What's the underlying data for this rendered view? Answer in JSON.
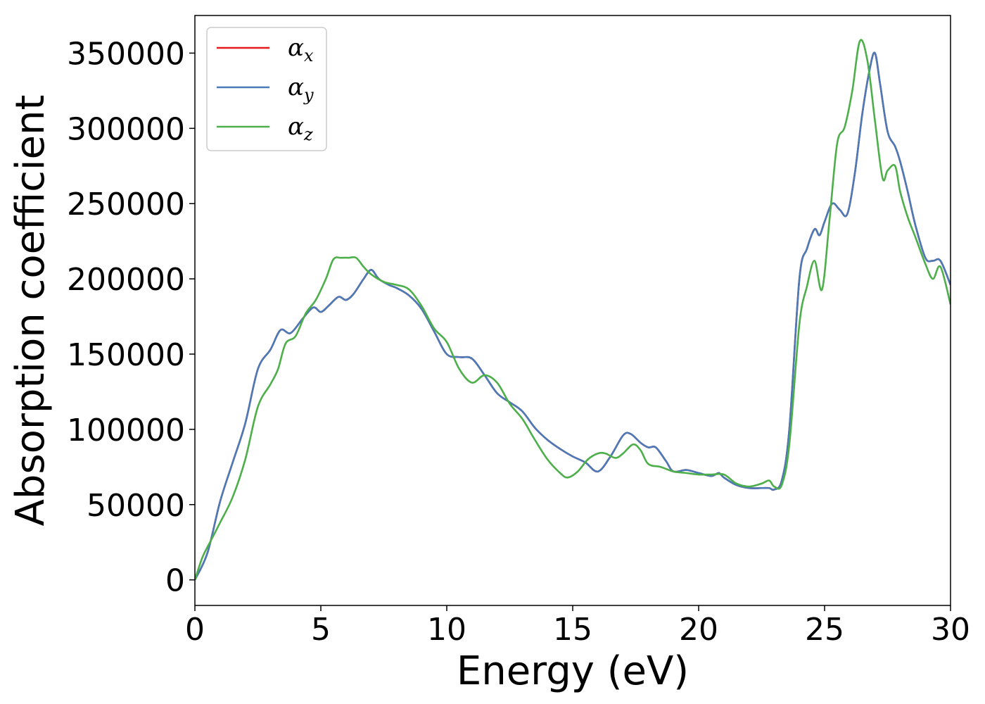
{
  "chart_data": {
    "type": "line",
    "xlabel": "Energy (eV)",
    "ylabel": "Absorption coefficient",
    "xlim": [
      0,
      30
    ],
    "ylim": [
      -17000,
      375000
    ],
    "xticks": [
      0,
      5,
      10,
      15,
      20,
      25,
      30
    ],
    "yticks": [
      0,
      50000,
      100000,
      150000,
      200000,
      250000,
      300000,
      350000
    ],
    "legend_position": "upper-left",
    "grid": false,
    "series": [
      {
        "name": "α_x",
        "symbol": "α",
        "subscript": "x",
        "color": "#e41a1c",
        "x": [
          0,
          0.5,
          1,
          1.5,
          2,
          2.5,
          3,
          3.4,
          3.8,
          4.3,
          4.7,
          5,
          5.3,
          5.7,
          6,
          6.3,
          6.7,
          7,
          7.3,
          7.7,
          8,
          8.5,
          9,
          9.5,
          10,
          10.5,
          11,
          11.5,
          12,
          12.5,
          13,
          13.5,
          14,
          14.5,
          15,
          15.5,
          16,
          16.5,
          17,
          17.3,
          17.7,
          18,
          18.3,
          18.7,
          19,
          19.5,
          20,
          20.5,
          20.8,
          21,
          21.5,
          22,
          22.5,
          22.8,
          23,
          23.3,
          23.6,
          24,
          24.3,
          24.6,
          24.8,
          25,
          25.3,
          25.6,
          25.9,
          26.2,
          26.5,
          26.8,
          27,
          27.2,
          27.5,
          27.8,
          28,
          28.3,
          28.6,
          29,
          29.3,
          29.6,
          30
        ],
        "values": [
          0,
          18000,
          52000,
          78000,
          104000,
          140000,
          153000,
          166000,
          164000,
          174000,
          181000,
          178000,
          182000,
          188000,
          186000,
          190000,
          200000,
          206000,
          200000,
          196000,
          194000,
          189000,
          180000,
          165000,
          150000,
          148000,
          147000,
          136000,
          124000,
          118000,
          112000,
          101000,
          93000,
          87000,
          82000,
          78000,
          72000,
          82000,
          96000,
          97000,
          91000,
          88000,
          88000,
          79000,
          72000,
          73000,
          71000,
          69000,
          71000,
          68000,
          63000,
          61000,
          61000,
          61000,
          60000,
          66000,
          100000,
          200000,
          220000,
          233000,
          229000,
          238000,
          250000,
          246000,
          243000,
          270000,
          310000,
          340000,
          350000,
          330000,
          298000,
          288000,
          278000,
          258000,
          236000,
          214000,
          212000,
          212000,
          196000
        ]
      },
      {
        "name": "α_y",
        "symbol": "α",
        "subscript": "y",
        "color": "#4a7ab8",
        "x": [
          0,
          0.5,
          1,
          1.5,
          2,
          2.5,
          3,
          3.4,
          3.8,
          4.3,
          4.7,
          5,
          5.3,
          5.7,
          6,
          6.3,
          6.7,
          7,
          7.3,
          7.7,
          8,
          8.5,
          9,
          9.5,
          10,
          10.5,
          11,
          11.5,
          12,
          12.5,
          13,
          13.5,
          14,
          14.5,
          15,
          15.5,
          16,
          16.5,
          17,
          17.3,
          17.7,
          18,
          18.3,
          18.7,
          19,
          19.5,
          20,
          20.5,
          20.8,
          21,
          21.5,
          22,
          22.5,
          22.8,
          23,
          23.3,
          23.6,
          24,
          24.3,
          24.6,
          24.8,
          25,
          25.3,
          25.6,
          25.9,
          26.2,
          26.5,
          26.8,
          27,
          27.2,
          27.5,
          27.8,
          28,
          28.3,
          28.6,
          29,
          29.3,
          29.6,
          30
        ],
        "values": [
          0,
          18000,
          52000,
          78000,
          104000,
          140000,
          153000,
          166000,
          164000,
          174000,
          181000,
          178000,
          182000,
          188000,
          186000,
          190000,
          200000,
          206000,
          200000,
          196000,
          194000,
          189000,
          180000,
          165000,
          150000,
          148000,
          147000,
          136000,
          124000,
          118000,
          112000,
          101000,
          93000,
          87000,
          82000,
          78000,
          72000,
          82000,
          96000,
          97000,
          91000,
          88000,
          88000,
          79000,
          72000,
          73000,
          71000,
          69000,
          71000,
          68000,
          63000,
          61000,
          61000,
          61000,
          60000,
          66000,
          100000,
          200000,
          220000,
          233000,
          229000,
          238000,
          250000,
          246000,
          243000,
          270000,
          310000,
          340000,
          350000,
          330000,
          298000,
          288000,
          278000,
          258000,
          236000,
          214000,
          212000,
          212000,
          196000
        ]
      },
      {
        "name": "α_z",
        "symbol": "α",
        "subscript": "z",
        "color": "#4daf4a",
        "x": [
          0,
          0.3,
          0.6,
          1,
          1.5,
          2,
          2.5,
          3,
          3.3,
          3.6,
          4,
          4.4,
          4.8,
          5.2,
          5.5,
          5.8,
          6.1,
          6.4,
          6.7,
          7,
          7.5,
          8,
          8.5,
          9,
          9.5,
          10,
          10.5,
          11,
          11.5,
          12,
          12.5,
          13,
          13.5,
          14,
          14.5,
          14.8,
          15.2,
          15.6,
          16,
          16.3,
          16.7,
          17,
          17.4,
          17.7,
          18,
          18.5,
          19,
          19.5,
          20,
          20.5,
          21,
          21.5,
          22,
          22.5,
          22.8,
          23,
          23.3,
          23.6,
          24,
          24.3,
          24.6,
          24.9,
          25.2,
          25.5,
          25.8,
          26.1,
          26.4,
          26.7,
          27,
          27.3,
          27.5,
          27.8,
          28,
          28.3,
          28.6,
          29,
          29.3,
          29.6,
          30
        ],
        "values": [
          0,
          15000,
          25000,
          38000,
          55000,
          80000,
          115000,
          130000,
          140000,
          157000,
          162000,
          177000,
          186000,
          200000,
          213000,
          214000,
          214000,
          214000,
          208000,
          203000,
          198000,
          196000,
          193000,
          182000,
          167000,
          158000,
          140000,
          131000,
          136000,
          131000,
          117000,
          107000,
          93000,
          80000,
          71000,
          68000,
          72000,
          80000,
          84000,
          84000,
          81000,
          84000,
          90000,
          86000,
          77000,
          75000,
          72000,
          71000,
          70000,
          70000,
          70000,
          64000,
          62000,
          64000,
          66000,
          62000,
          63000,
          90000,
          170000,
          195000,
          212000,
          193000,
          240000,
          290000,
          301000,
          325000,
          358000,
          345000,
          305000,
          267000,
          272000,
          275000,
          258000,
          241000,
          228000,
          210000,
          200000,
          208000,
          183000
        ]
      }
    ]
  }
}
